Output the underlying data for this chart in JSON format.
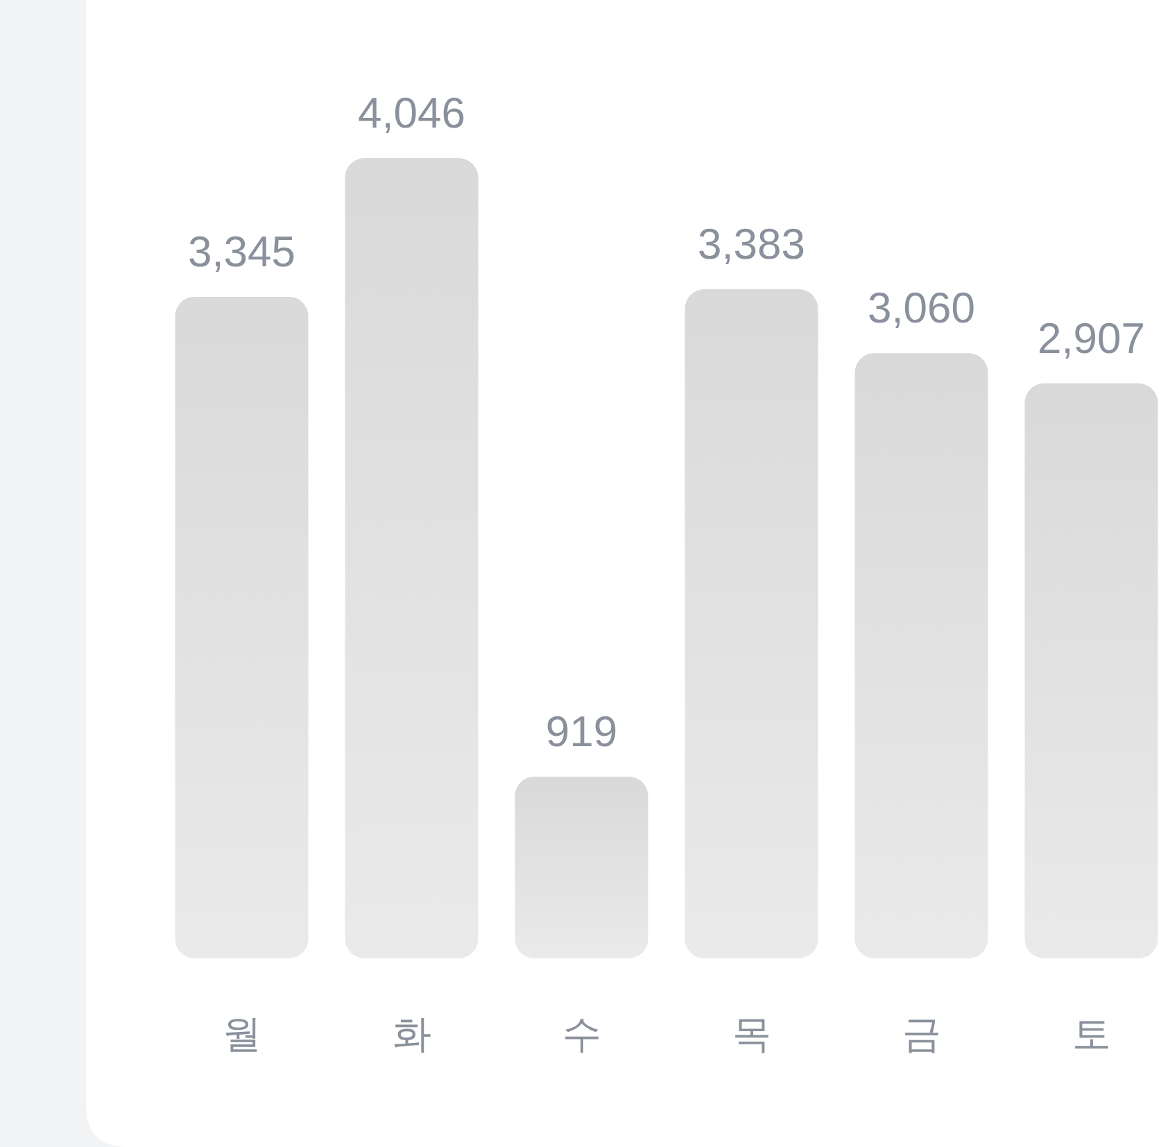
{
  "chart_data": {
    "type": "bar",
    "categories": [
      "월",
      "화",
      "수",
      "목",
      "금",
      "토"
    ],
    "values": [
      3345,
      4046,
      919,
      3383,
      3060,
      2907
    ],
    "value_labels": [
      "3,345",
      "4,046",
      "919",
      "3,383",
      "3,060",
      "2,907"
    ],
    "color": "#d9d9d9"
  }
}
